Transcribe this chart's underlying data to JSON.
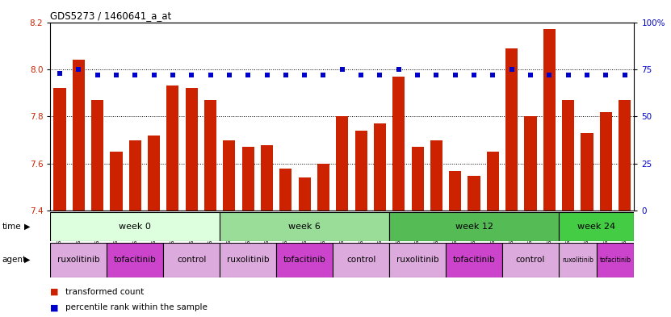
{
  "title": "GDS5273 / 1460641_a_at",
  "samples": [
    "GSM1105885",
    "GSM1105886",
    "GSM1105887",
    "GSM1105896",
    "GSM1105897",
    "GSM1105898",
    "GSM1105907",
    "GSM1105908",
    "GSM1105909",
    "GSM1105888",
    "GSM1105889",
    "GSM1105890",
    "GSM1105899",
    "GSM1105900",
    "GSM1105901",
    "GSM1105910",
    "GSM1105911",
    "GSM1105912",
    "GSM1105891",
    "GSM1105892",
    "GSM1105893",
    "GSM1105902",
    "GSM1105903",
    "GSM1105904",
    "GSM1105913",
    "GSM1105914",
    "GSM1105915",
    "GSM1105894",
    "GSM1105895",
    "GSM1105905",
    "GSM1105906"
  ],
  "bar_values": [
    7.92,
    8.04,
    7.87,
    7.65,
    7.7,
    7.72,
    7.93,
    7.92,
    7.87,
    7.7,
    7.67,
    7.68,
    7.58,
    7.54,
    7.6,
    7.8,
    7.74,
    7.77,
    7.97,
    7.67,
    7.7,
    7.57,
    7.55,
    7.65,
    8.09,
    7.8,
    8.17,
    7.87,
    7.73,
    7.82,
    7.87
  ],
  "percentile_values": [
    73,
    75,
    72,
    72,
    72,
    72,
    72,
    72,
    72,
    72,
    72,
    72,
    72,
    72,
    72,
    75,
    72,
    72,
    75,
    72,
    72,
    72,
    72,
    72,
    75,
    72,
    72,
    72,
    72,
    72,
    72
  ],
  "ylim_left": [
    7.4,
    8.2
  ],
  "ylim_right": [
    0,
    100
  ],
  "yticks_left": [
    7.4,
    7.6,
    7.8,
    8.0,
    8.2
  ],
  "yticks_right": [
    0,
    25,
    50,
    75,
    100
  ],
  "bar_color": "#cc2200",
  "dot_color": "#0000cc",
  "time_groups": [
    {
      "label": "week 0",
      "start": 0,
      "end": 9,
      "color": "#ddffdd"
    },
    {
      "label": "week 6",
      "start": 9,
      "end": 18,
      "color": "#99dd99"
    },
    {
      "label": "week 12",
      "start": 18,
      "end": 27,
      "color": "#55bb55"
    },
    {
      "label": "week 24",
      "start": 27,
      "end": 31,
      "color": "#44cc44"
    }
  ],
  "agent_groups": [
    {
      "label": "ruxolitinib",
      "start": 0,
      "end": 3,
      "color": "#ddaadd"
    },
    {
      "label": "tofacitinib",
      "start": 3,
      "end": 6,
      "color": "#cc44cc"
    },
    {
      "label": "control",
      "start": 6,
      "end": 9,
      "color": "#ddaadd"
    },
    {
      "label": "ruxolitinib",
      "start": 9,
      "end": 12,
      "color": "#ddaadd"
    },
    {
      "label": "tofacitinib",
      "start": 12,
      "end": 15,
      "color": "#cc44cc"
    },
    {
      "label": "control",
      "start": 15,
      "end": 18,
      "color": "#ddaadd"
    },
    {
      "label": "ruxolitinib",
      "start": 18,
      "end": 21,
      "color": "#ddaadd"
    },
    {
      "label": "tofacitinib",
      "start": 21,
      "end": 24,
      "color": "#cc44cc"
    },
    {
      "label": "control",
      "start": 24,
      "end": 27,
      "color": "#ddaadd"
    },
    {
      "label": "ruxolitinib",
      "start": 27,
      "end": 29,
      "color": "#ddaadd"
    },
    {
      "label": "tofacitinib",
      "start": 29,
      "end": 31,
      "color": "#cc44cc"
    }
  ],
  "fig_width": 8.31,
  "fig_height": 3.93,
  "dpi": 100
}
